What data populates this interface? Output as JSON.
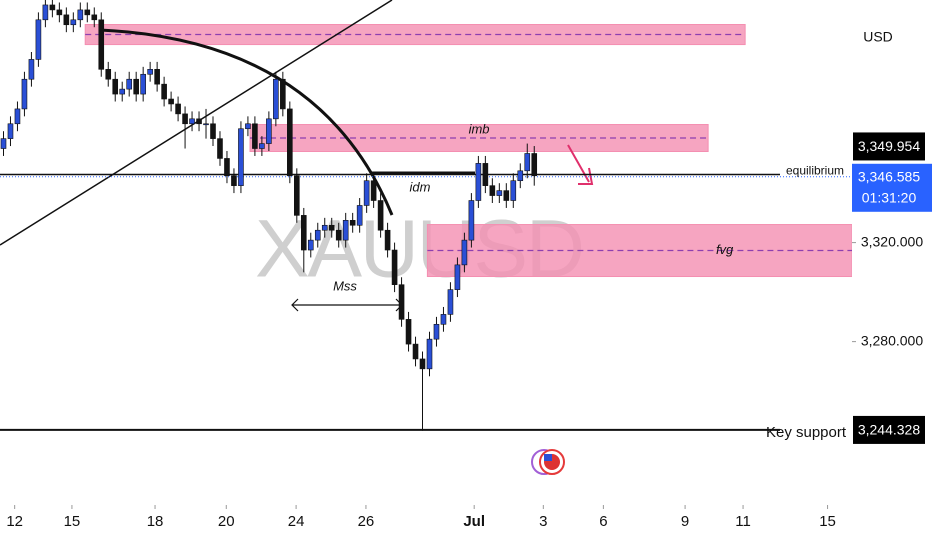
{
  "chart_data": {
    "type": "candlestick",
    "watermark": "XAUUSD",
    "currency": "USD",
    "colors": {
      "up": "#2a4fd6",
      "down": "#131313",
      "zone": "#f48fb1",
      "zone_line": "#8e3fb0",
      "price_line": "#2962ff"
    },
    "xlim": [
      0,
      122
    ],
    "ylim": [
      3214,
      3418
    ],
    "yticks": [
      {
        "value": 3280,
        "label": "3,280.000"
      },
      {
        "value": 3320,
        "label": "3,320.000"
      }
    ],
    "xticks": [
      {
        "value": 2.1,
        "label": "12"
      },
      {
        "value": 10.3,
        "label": "15"
      },
      {
        "value": 22.2,
        "label": "18"
      },
      {
        "value": 32.4,
        "label": "20"
      },
      {
        "value": 42.4,
        "label": "24"
      },
      {
        "value": 52.4,
        "label": "26"
      },
      {
        "value": 67.9,
        "label": "Jul"
      },
      {
        "value": 77.8,
        "label": "3"
      },
      {
        "value": 86.4,
        "label": "6"
      },
      {
        "value": 98.1,
        "label": "9"
      },
      {
        "value": 106.4,
        "label": "11"
      },
      {
        "value": 118.5,
        "label": "15"
      }
    ],
    "x": [
      0.5,
      1.5,
      2.5,
      3.5,
      4.5,
      5.5,
      6.5,
      7.5,
      8.5,
      9.5,
      10.5,
      11.5,
      12.5,
      13.5,
      14.5,
      15.5,
      16.5,
      17.5,
      18.5,
      19.5,
      20.5,
      21.5,
      22.5,
      23.5,
      24.5,
      25.5,
      26.5,
      27.5,
      28.5,
      29.5,
      30.5,
      31.5,
      32.5,
      33.5,
      34.5,
      35.5,
      36.5,
      37.5,
      38.5,
      39.5,
      40.5,
      41.5,
      42.5,
      43.5,
      44.5,
      45.5,
      46.5,
      47.5,
      48.5,
      49.5,
      50.5,
      51.5,
      52.5,
      53.5,
      54.5,
      55.5,
      56.5,
      57.5,
      58.5,
      59.5,
      60.5,
      61.5,
      62.5,
      63.5,
      64.5,
      65.5,
      66.5,
      67.5,
      68.5,
      69.5,
      70.5,
      71.5,
      72.5,
      73.5,
      74.5,
      75.5,
      76.5
    ],
    "ohlc": [
      [
        3358,
        3365,
        3355,
        3362
      ],
      [
        3362,
        3371,
        3359,
        3368
      ],
      [
        3368,
        3377,
        3365,
        3374
      ],
      [
        3374,
        3389,
        3371,
        3386
      ],
      [
        3386,
        3397,
        3383,
        3394
      ],
      [
        3394,
        3413,
        3391,
        3410
      ],
      [
        3410,
        3419,
        3407,
        3416
      ],
      [
        3416,
        3419,
        3411,
        3414
      ],
      [
        3414,
        3417,
        3409,
        3412
      ],
      [
        3412,
        3415,
        3405,
        3408
      ],
      [
        3408,
        3413,
        3405,
        3410
      ],
      [
        3410,
        3417,
        3407,
        3414
      ],
      [
        3414,
        3417,
        3409,
        3412
      ],
      [
        3412,
        3415,
        3407,
        3410
      ],
      [
        3410,
        3413,
        3387,
        3390
      ],
      [
        3390,
        3393,
        3383,
        3386
      ],
      [
        3386,
        3389,
        3377,
        3380
      ],
      [
        3380,
        3385,
        3377,
        3382
      ],
      [
        3382,
        3389,
        3379,
        3386
      ],
      [
        3386,
        3389,
        3377,
        3380
      ],
      [
        3380,
        3391,
        3377,
        3388
      ],
      [
        3388,
        3393,
        3385,
        3390
      ],
      [
        3390,
        3393,
        3381,
        3384
      ],
      [
        3384,
        3387,
        3375,
        3378
      ],
      [
        3378,
        3381,
        3373,
        3376
      ],
      [
        3376,
        3379,
        3369,
        3372
      ],
      [
        3372,
        3375,
        3358,
        3368
      ],
      [
        3368,
        3373,
        3365,
        3370
      ],
      [
        3370,
        3373,
        3365,
        3368
      ],
      [
        3368,
        3374,
        3362,
        3368
      ],
      [
        3368,
        3371,
        3359,
        3362
      ],
      [
        3362,
        3365,
        3351,
        3354
      ],
      [
        3354,
        3357,
        3344,
        3347
      ],
      [
        3347,
        3350,
        3340,
        3343
      ],
      [
        3343,
        3369,
        3340,
        3366
      ],
      [
        3366,
        3371,
        3363,
        3368
      ],
      [
        3368,
        3371,
        3355,
        3358
      ],
      [
        3358,
        3363,
        3355,
        3360
      ],
      [
        3360,
        3373,
        3357,
        3370
      ],
      [
        3370,
        3389,
        3367,
        3386
      ],
      [
        3386,
        3389,
        3371,
        3374
      ],
      [
        3374,
        3377,
        3344,
        3347
      ],
      [
        3347,
        3350,
        3328,
        3331
      ],
      [
        3331,
        3334,
        3308,
        3317
      ],
      [
        3317,
        3324,
        3314,
        3321
      ],
      [
        3321,
        3328,
        3318,
        3325
      ],
      [
        3325,
        3330,
        3322,
        3327
      ],
      [
        3327,
        3330,
        3322,
        3325
      ],
      [
        3325,
        3328,
        3318,
        3321
      ],
      [
        3321,
        3332,
        3318,
        3329
      ],
      [
        3329,
        3332,
        3324,
        3327
      ],
      [
        3327,
        3338,
        3324,
        3335
      ],
      [
        3335,
        3348,
        3332,
        3345
      ],
      [
        3345,
        3348,
        3334,
        3337
      ],
      [
        3337,
        3340,
        3322,
        3325
      ],
      [
        3325,
        3328,
        3314,
        3317
      ],
      [
        3317,
        3320,
        3300,
        3303
      ],
      [
        3303,
        3306,
        3286,
        3289
      ],
      [
        3289,
        3292,
        3276,
        3279
      ],
      [
        3279,
        3282,
        3270,
        3273
      ],
      [
        3273,
        3276,
        3244,
        3269
      ],
      [
        3269,
        3284,
        3266,
        3281
      ],
      [
        3281,
        3290,
        3278,
        3287
      ],
      [
        3287,
        3294,
        3284,
        3291
      ],
      [
        3291,
        3304,
        3288,
        3301
      ],
      [
        3301,
        3314,
        3298,
        3311
      ],
      [
        3311,
        3324,
        3308,
        3321
      ],
      [
        3321,
        3340,
        3318,
        3337
      ],
      [
        3337,
        3355,
        3334,
        3352
      ],
      [
        3352,
        3355,
        3340,
        3343
      ],
      [
        3343,
        3346,
        3336,
        3339
      ],
      [
        3339,
        3344,
        3336,
        3341
      ],
      [
        3341,
        3344,
        3334,
        3337
      ],
      [
        3337,
        3348,
        3334,
        3345
      ],
      [
        3345,
        3352,
        3342,
        3349
      ],
      [
        3349,
        3360,
        3346,
        3356
      ],
      [
        3356,
        3359,
        3343,
        3347
      ]
    ],
    "zones": [
      {
        "x": [
          12.2,
          106.7
        ],
        "y": [
          3400,
          3408.1
        ]
      },
      {
        "x": [
          35.8,
          101.4
        ],
        "y": [
          3356.8,
          3367.7
        ],
        "label": "imb"
      },
      {
        "x": [
          61.2,
          122
        ],
        "y": [
          3306.3,
          3327.3
        ],
        "label": "fvg"
      }
    ],
    "levels": [
      {
        "value": 3244.328,
        "label": "Key support",
        "price_label": "3,244.328"
      },
      {
        "value": 3347.5,
        "label": "equilibrium"
      }
    ],
    "high_marker": {
      "value": 3349.954,
      "label": "3,349.954"
    },
    "current_price": {
      "value": 3346.585,
      "label": "3,346.585",
      "countdown": "01:31:20"
    },
    "annotations": [
      "idm",
      "Mss"
    ]
  }
}
